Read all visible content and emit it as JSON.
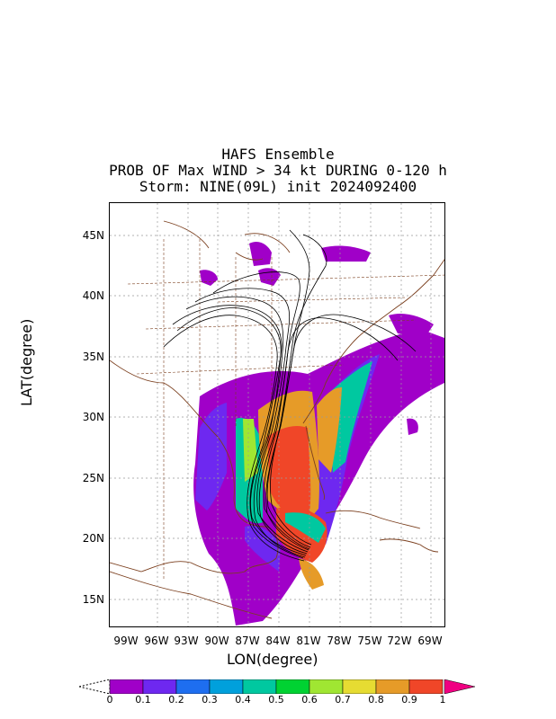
{
  "title": {
    "line1": "HAFS Ensemble",
    "line2": "PROB OF Max WIND > 34 kt DURING 0-120 h",
    "line3": "Storm: NINE(09L) init 2024092400"
  },
  "axes": {
    "xlabel": "LON(degree)",
    "ylabel": "LAT(degree)",
    "x_ticks": [
      "99W",
      "96W",
      "93W",
      "90W",
      "87W",
      "84W",
      "81W",
      "78W",
      "75W",
      "72W",
      "69W"
    ],
    "y_ticks": [
      "45N",
      "40N",
      "35N",
      "30N",
      "25N",
      "20N",
      "15N"
    ]
  },
  "colorbar": {
    "levels": [
      "0",
      "0.1",
      "0.2",
      "0.3",
      "0.4",
      "0.5",
      "0.6",
      "0.7",
      "0.8",
      "0.9",
      "1"
    ],
    "colors": [
      "#a000c8",
      "#6e28f0",
      "#1e6ef0",
      "#00a0dc",
      "#00c8a0",
      "#00d232",
      "#a0e632",
      "#e6dc32",
      "#e69b28",
      "#f04628",
      "#f00082"
    ]
  },
  "map": {
    "lon_range": [
      -100,
      -67
    ],
    "lat_range": [
      12.5,
      47.5
    ],
    "grid": "dotted",
    "track_color": "#000000",
    "coast_color": "#7b3f1e",
    "border_color": "#7b3f1e"
  }
}
